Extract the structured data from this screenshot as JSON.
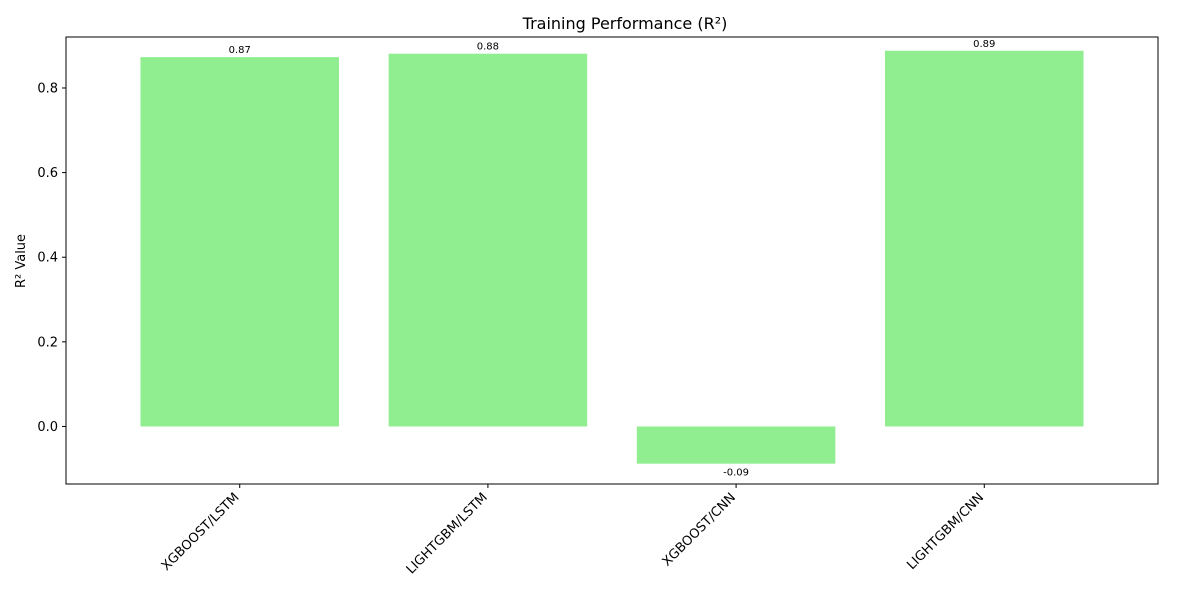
{
  "chart_data": {
    "type": "bar",
    "title": "Training Performance (R²)",
    "xlabel": "",
    "ylabel": "R² Value",
    "categories": [
      "XGBOOST/LSTM",
      "LIGHTGBM/LSTM",
      "XGBOOST/CNN",
      "LIGHTGBM/CNN"
    ],
    "values": [
      0.873,
      0.881,
      -0.088,
      0.888
    ],
    "value_labels": [
      "0.87",
      "0.88",
      "-0.09",
      "0.89"
    ],
    "ylim": [
      -0.136,
      0.9205
    ],
    "yticks": [
      0.0,
      0.2,
      0.4,
      0.6,
      0.8
    ],
    "ytick_labels": [
      "0.0",
      "0.2",
      "0.4",
      "0.6",
      "0.8"
    ],
    "bar_color": "#90ee90",
    "grid": false,
    "legend": "none"
  }
}
